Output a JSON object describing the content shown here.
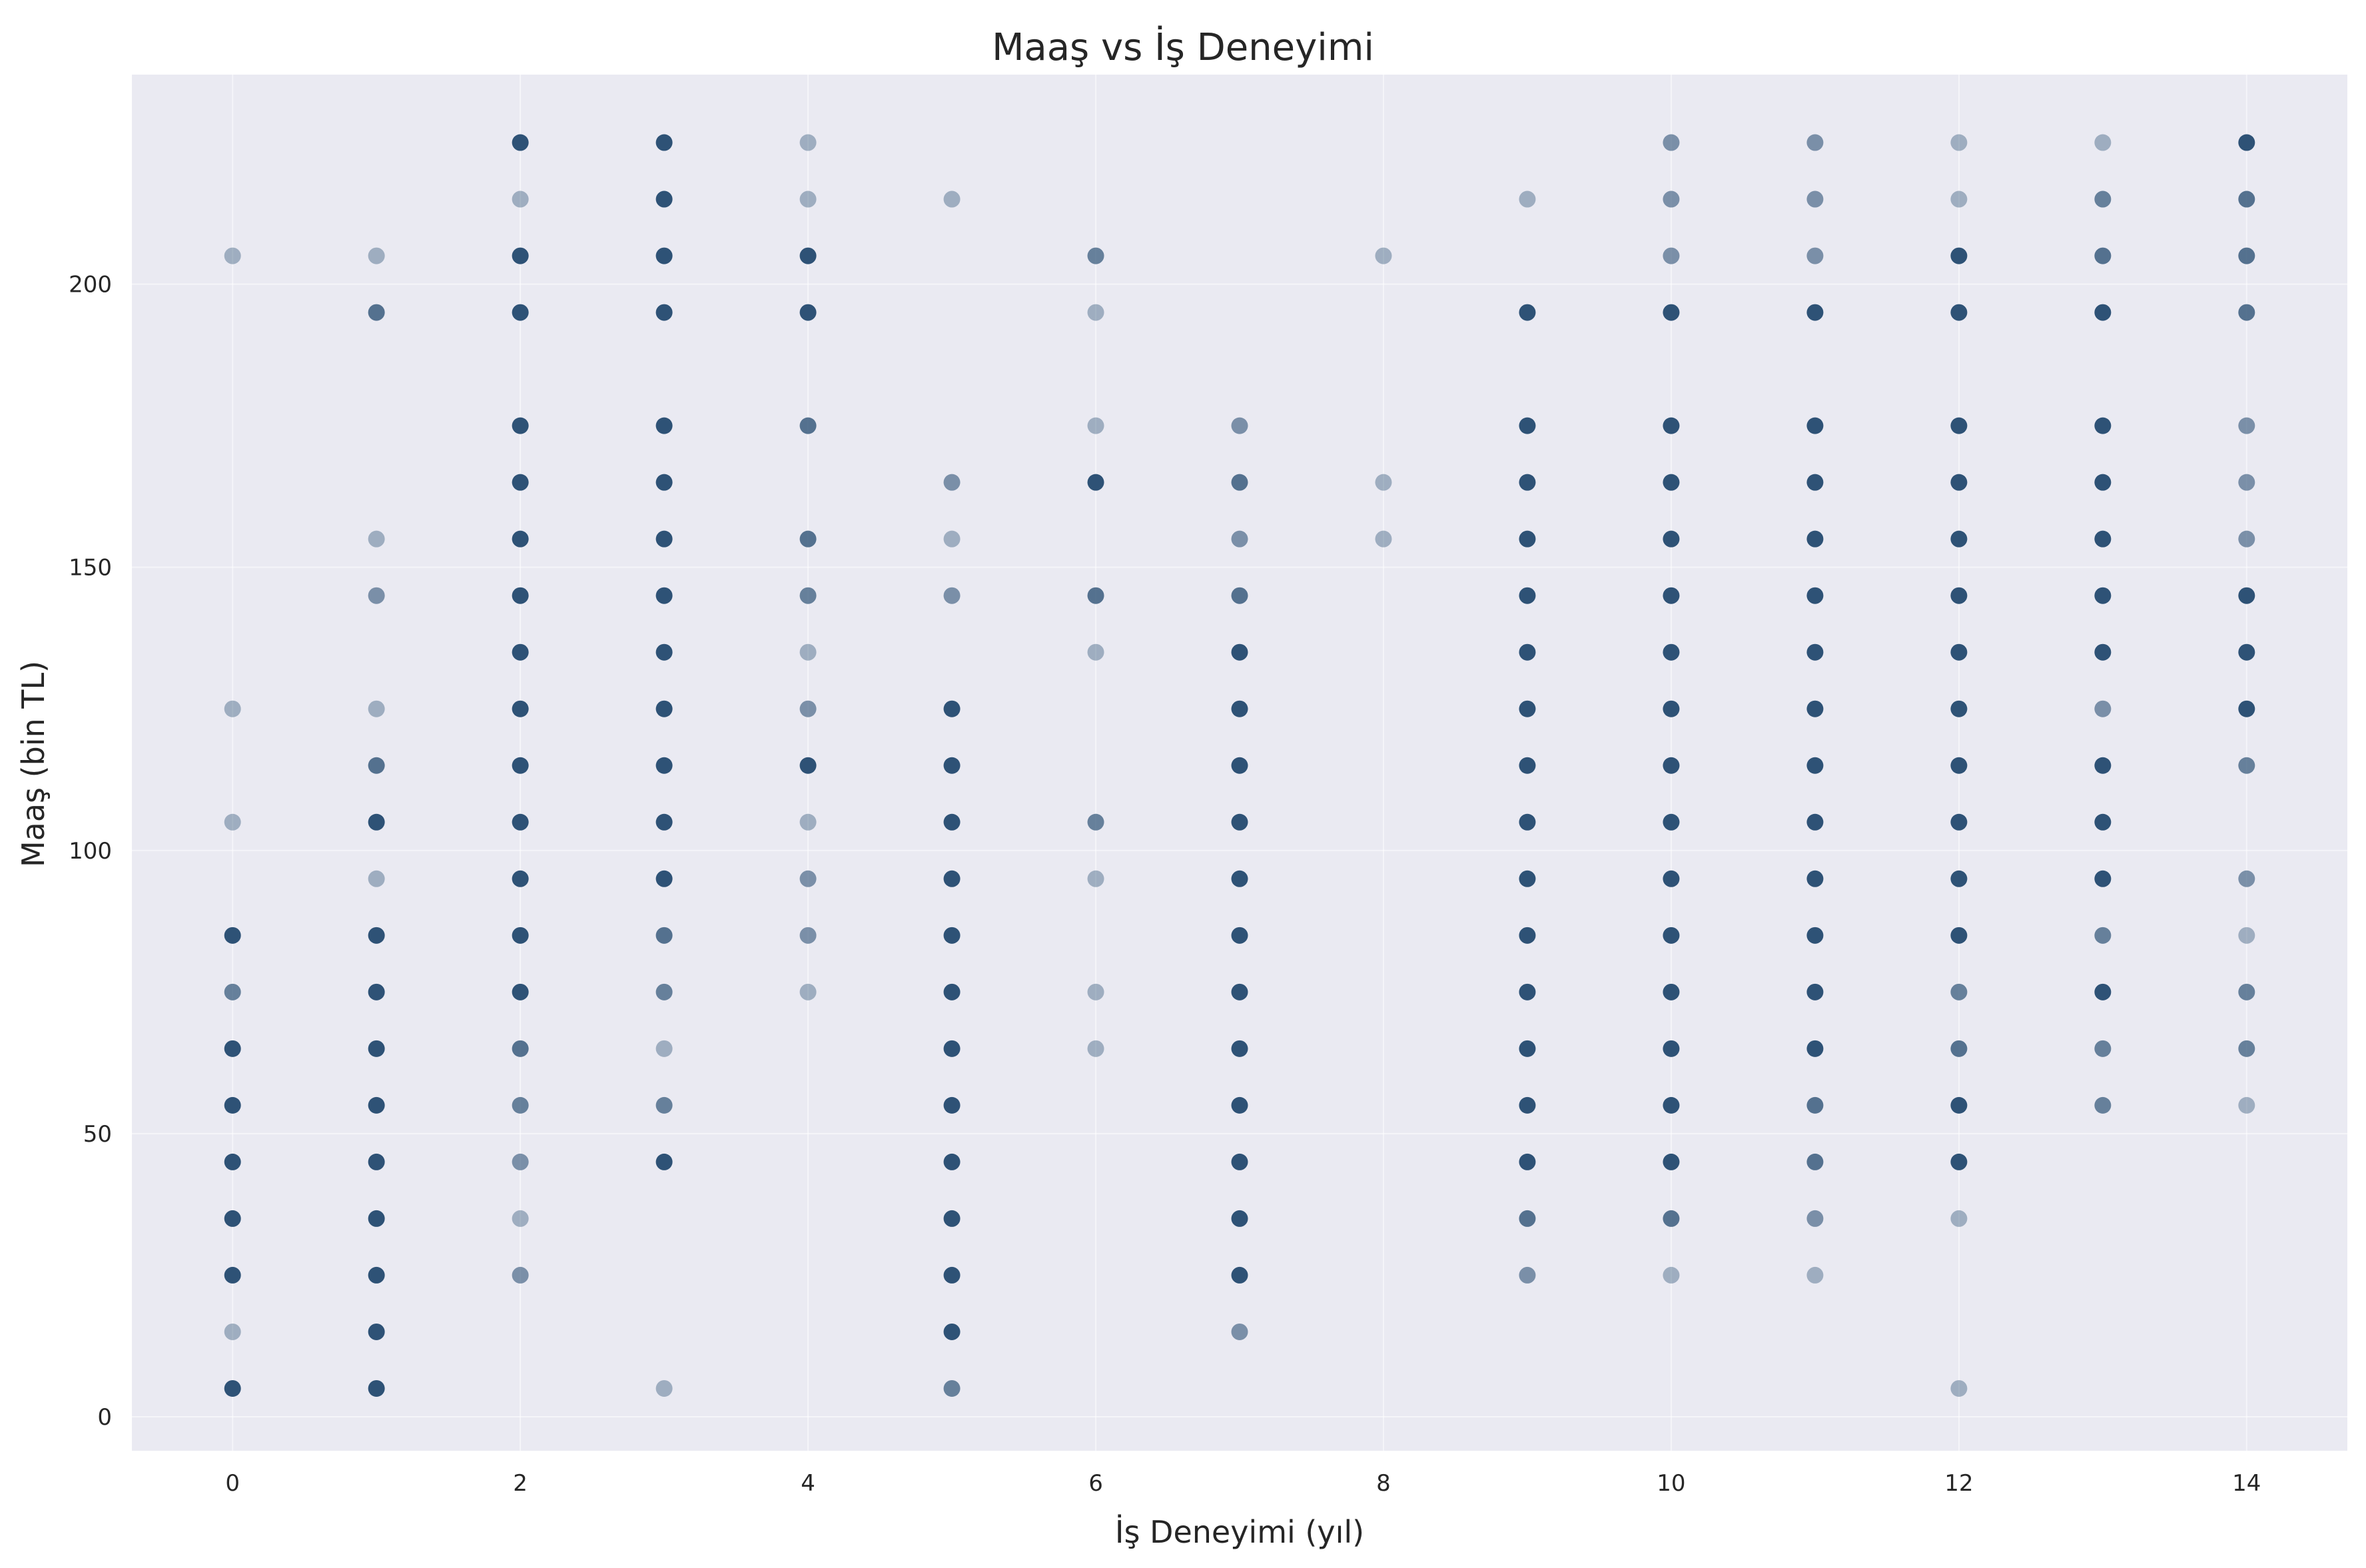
{
  "chart_data": {
    "type": "scatter",
    "title": "Maaş vs İş Deneyimi",
    "xlabel": "İş Deneyimi (yıl)",
    "ylabel": "Maaş (bin TL)",
    "xlim": [
      -0.7,
      14.7
    ],
    "ylim": [
      -6,
      237
    ],
    "xticks": [
      0,
      2,
      4,
      6,
      8,
      10,
      12,
      14
    ],
    "yticks": [
      0,
      50,
      100,
      150,
      200
    ],
    "grid": true,
    "legend": "none",
    "colors": {
      "background": "#eaeaf2",
      "grid": "#ffffff",
      "point": "#2e5276"
    },
    "points": [
      [
        0,
        205,
        0.4
      ],
      [
        0,
        125,
        0.4
      ],
      [
        0,
        105,
        0.4
      ],
      [
        0,
        85,
        1
      ],
      [
        0,
        75,
        0.7
      ],
      [
        0,
        65,
        1
      ],
      [
        0,
        55,
        1
      ],
      [
        0,
        45,
        1
      ],
      [
        0,
        35,
        1
      ],
      [
        0,
        25,
        1
      ],
      [
        0,
        15,
        0.4
      ],
      [
        0,
        5,
        1
      ],
      [
        1,
        205,
        0.4
      ],
      [
        1,
        195,
        0.8
      ],
      [
        1,
        155,
        0.4
      ],
      [
        1,
        145,
        0.6
      ],
      [
        1,
        125,
        0.4
      ],
      [
        1,
        115,
        0.8
      ],
      [
        1,
        105,
        1
      ],
      [
        1,
        95,
        0.4
      ],
      [
        1,
        85,
        1
      ],
      [
        1,
        75,
        1
      ],
      [
        1,
        65,
        1
      ],
      [
        1,
        55,
        1
      ],
      [
        1,
        45,
        1
      ],
      [
        1,
        35,
        1
      ],
      [
        1,
        25,
        1
      ],
      [
        1,
        15,
        1
      ],
      [
        1,
        5,
        1
      ],
      [
        2,
        225,
        1
      ],
      [
        2,
        215,
        0.4
      ],
      [
        2,
        205,
        1
      ],
      [
        2,
        195,
        1
      ],
      [
        2,
        175,
        1
      ],
      [
        2,
        165,
        1
      ],
      [
        2,
        155,
        1
      ],
      [
        2,
        145,
        1
      ],
      [
        2,
        135,
        1
      ],
      [
        2,
        125,
        1
      ],
      [
        2,
        115,
        1
      ],
      [
        2,
        105,
        1
      ],
      [
        2,
        95,
        1
      ],
      [
        2,
        85,
        1
      ],
      [
        2,
        75,
        1
      ],
      [
        2,
        65,
        0.8
      ],
      [
        2,
        55,
        0.7
      ],
      [
        2,
        45,
        0.6
      ],
      [
        2,
        35,
        0.4
      ],
      [
        2,
        25,
        0.6
      ],
      [
        3,
        225,
        1
      ],
      [
        3,
        215,
        1
      ],
      [
        3,
        205,
        1
      ],
      [
        3,
        195,
        1
      ],
      [
        3,
        175,
        1
      ],
      [
        3,
        165,
        1
      ],
      [
        3,
        155,
        1
      ],
      [
        3,
        145,
        1
      ],
      [
        3,
        135,
        1
      ],
      [
        3,
        125,
        1
      ],
      [
        3,
        115,
        1
      ],
      [
        3,
        105,
        1
      ],
      [
        3,
        95,
        1
      ],
      [
        3,
        85,
        0.8
      ],
      [
        3,
        75,
        0.7
      ],
      [
        3,
        65,
        0.4
      ],
      [
        3,
        55,
        0.7
      ],
      [
        3,
        45,
        1
      ],
      [
        3,
        5,
        0.4
      ],
      [
        4,
        225,
        0.4
      ],
      [
        4,
        215,
        0.4
      ],
      [
        4,
        205,
        1
      ],
      [
        4,
        195,
        1
      ],
      [
        4,
        175,
        0.8
      ],
      [
        4,
        155,
        0.8
      ],
      [
        4,
        145,
        0.7
      ],
      [
        4,
        135,
        0.4
      ],
      [
        4,
        125,
        0.6
      ],
      [
        4,
        115,
        1
      ],
      [
        4,
        105,
        0.4
      ],
      [
        4,
        95,
        0.6
      ],
      [
        4,
        85,
        0.6
      ],
      [
        4,
        75,
        0.4
      ],
      [
        5,
        215,
        0.4
      ],
      [
        5,
        165,
        0.6
      ],
      [
        5,
        155,
        0.4
      ],
      [
        5,
        145,
        0.6
      ],
      [
        5,
        125,
        1
      ],
      [
        5,
        115,
        1
      ],
      [
        5,
        105,
        1
      ],
      [
        5,
        95,
        1
      ],
      [
        5,
        85,
        1
      ],
      [
        5,
        75,
        1
      ],
      [
        5,
        65,
        1
      ],
      [
        5,
        55,
        1
      ],
      [
        5,
        45,
        1
      ],
      [
        5,
        35,
        1
      ],
      [
        5,
        25,
        1
      ],
      [
        5,
        15,
        1
      ],
      [
        5,
        5,
        0.7
      ],
      [
        6,
        205,
        0.7
      ],
      [
        6,
        195,
        0.4
      ],
      [
        6,
        175,
        0.4
      ],
      [
        6,
        165,
        1
      ],
      [
        6,
        145,
        0.8
      ],
      [
        6,
        135,
        0.4
      ],
      [
        6,
        105,
        0.7
      ],
      [
        6,
        95,
        0.4
      ],
      [
        6,
        75,
        0.4
      ],
      [
        6,
        65,
        0.4
      ],
      [
        7,
        175,
        0.6
      ],
      [
        7,
        165,
        0.8
      ],
      [
        7,
        155,
        0.6
      ],
      [
        7,
        145,
        0.8
      ],
      [
        7,
        135,
        1
      ],
      [
        7,
        125,
        1
      ],
      [
        7,
        115,
        1
      ],
      [
        7,
        105,
        1
      ],
      [
        7,
        95,
        1
      ],
      [
        7,
        85,
        1
      ],
      [
        7,
        75,
        1
      ],
      [
        7,
        65,
        1
      ],
      [
        7,
        55,
        1
      ],
      [
        7,
        45,
        1
      ],
      [
        7,
        35,
        1
      ],
      [
        7,
        25,
        1
      ],
      [
        7,
        15,
        0.6
      ],
      [
        8,
        205,
        0.4
      ],
      [
        8,
        165,
        0.4
      ],
      [
        8,
        155,
        0.4
      ],
      [
        9,
        215,
        0.4
      ],
      [
        9,
        195,
        1
      ],
      [
        9,
        175,
        1
      ],
      [
        9,
        165,
        1
      ],
      [
        9,
        155,
        1
      ],
      [
        9,
        145,
        1
      ],
      [
        9,
        135,
        1
      ],
      [
        9,
        125,
        1
      ],
      [
        9,
        115,
        1
      ],
      [
        9,
        105,
        1
      ],
      [
        9,
        95,
        1
      ],
      [
        9,
        85,
        1
      ],
      [
        9,
        75,
        1
      ],
      [
        9,
        65,
        1
      ],
      [
        9,
        55,
        1
      ],
      [
        9,
        45,
        1
      ],
      [
        9,
        35,
        0.8
      ],
      [
        9,
        25,
        0.6
      ],
      [
        10,
        225,
        0.6
      ],
      [
        10,
        215,
        0.6
      ],
      [
        10,
        205,
        0.6
      ],
      [
        10,
        195,
        1
      ],
      [
        10,
        175,
        1
      ],
      [
        10,
        165,
        1
      ],
      [
        10,
        155,
        1
      ],
      [
        10,
        145,
        1
      ],
      [
        10,
        135,
        1
      ],
      [
        10,
        125,
        1
      ],
      [
        10,
        115,
        1
      ],
      [
        10,
        105,
        1
      ],
      [
        10,
        95,
        1
      ],
      [
        10,
        85,
        1
      ],
      [
        10,
        75,
        1
      ],
      [
        10,
        65,
        1
      ],
      [
        10,
        55,
        1
      ],
      [
        10,
        45,
        1
      ],
      [
        10,
        35,
        0.8
      ],
      [
        10,
        25,
        0.4
      ],
      [
        11,
        225,
        0.6
      ],
      [
        11,
        215,
        0.6
      ],
      [
        11,
        205,
        0.6
      ],
      [
        11,
        195,
        1
      ],
      [
        11,
        175,
        1
      ],
      [
        11,
        165,
        1
      ],
      [
        11,
        155,
        1
      ],
      [
        11,
        145,
        1
      ],
      [
        11,
        135,
        1
      ],
      [
        11,
        125,
        1
      ],
      [
        11,
        115,
        1
      ],
      [
        11,
        105,
        1
      ],
      [
        11,
        95,
        1
      ],
      [
        11,
        85,
        1
      ],
      [
        11,
        75,
        1
      ],
      [
        11,
        65,
        1
      ],
      [
        11,
        55,
        0.8
      ],
      [
        11,
        45,
        0.8
      ],
      [
        11,
        35,
        0.6
      ],
      [
        11,
        25,
        0.4
      ],
      [
        12,
        225,
        0.4
      ],
      [
        12,
        215,
        0.4
      ],
      [
        12,
        205,
        1
      ],
      [
        12,
        195,
        1
      ],
      [
        12,
        175,
        1
      ],
      [
        12,
        165,
        1
      ],
      [
        12,
        155,
        1
      ],
      [
        12,
        145,
        1
      ],
      [
        12,
        135,
        1
      ],
      [
        12,
        125,
        1
      ],
      [
        12,
        115,
        1
      ],
      [
        12,
        105,
        1
      ],
      [
        12,
        95,
        1
      ],
      [
        12,
        85,
        1
      ],
      [
        12,
        75,
        0.7
      ],
      [
        12,
        65,
        0.8
      ],
      [
        12,
        55,
        1
      ],
      [
        12,
        45,
        1
      ],
      [
        12,
        35,
        0.4
      ],
      [
        12,
        5,
        0.4
      ],
      [
        13,
        225,
        0.4
      ],
      [
        13,
        215,
        0.7
      ],
      [
        13,
        205,
        0.8
      ],
      [
        13,
        195,
        1
      ],
      [
        13,
        175,
        1
      ],
      [
        13,
        165,
        1
      ],
      [
        13,
        155,
        1
      ],
      [
        13,
        145,
        1
      ],
      [
        13,
        135,
        1
      ],
      [
        13,
        125,
        0.6
      ],
      [
        13,
        115,
        1
      ],
      [
        13,
        105,
        1
      ],
      [
        13,
        95,
        1
      ],
      [
        13,
        85,
        0.7
      ],
      [
        13,
        75,
        1
      ],
      [
        13,
        65,
        0.7
      ],
      [
        13,
        55,
        0.7
      ],
      [
        14,
        225,
        1
      ],
      [
        14,
        215,
        0.8
      ],
      [
        14,
        205,
        0.8
      ],
      [
        14,
        195,
        0.8
      ],
      [
        14,
        175,
        0.6
      ],
      [
        14,
        165,
        0.6
      ],
      [
        14,
        155,
        0.6
      ],
      [
        14,
        145,
        1
      ],
      [
        14,
        135,
        1
      ],
      [
        14,
        125,
        1
      ],
      [
        14,
        115,
        0.7
      ],
      [
        14,
        95,
        0.6
      ],
      [
        14,
        85,
        0.4
      ],
      [
        14,
        75,
        0.7
      ],
      [
        14,
        65,
        0.7
      ],
      [
        14,
        55,
        0.4
      ]
    ]
  }
}
